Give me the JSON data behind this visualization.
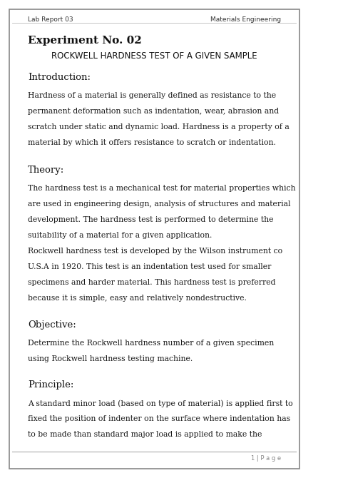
{
  "header_left": "Lab Report 03",
  "header_right": "Materials Engineering",
  "experiment_title": "Experiment No. 02",
  "subtitle": "ROCKWELL HARDNESS TEST OF A GIVEN SAMPLE",
  "section_intro_heading": "Introduction:",
  "section_theory_heading": "Theory:",
  "section_objective_heading": "Objective:",
  "section_principle_heading": "Principle:",
  "intro_lines": [
    "Hardness of a material is generally defined as resistance to the",
    "permanent deformation such as indentation, wear, abrasion and",
    "scratch under static and dynamic load. Hardness is a property of a",
    "material by which it offers resistance to scratch or indentation."
  ],
  "theory_lines1": [
    "The hardness test is a mechanical test for material properties which",
    "are used in engineering design, analysis of structures and material",
    "development. The hardness test is performed to determine the",
    "suitability of a material for a given application."
  ],
  "theory_lines2": [
    "Rockwell hardness test is developed by the Wilson instrument co",
    "U.S.A in 1920. This test is an indentation test used for smaller",
    "specimens and harder material. This hardness test is preferred",
    "because it is simple, easy and relatively nondestructive."
  ],
  "obj_lines": [
    "Determine the Rockwell hardness number of a given specimen",
    "using Rockwell hardness testing machine."
  ],
  "prin_lines": [
    "A standard minor load (based on type of material) is applied first to",
    "fixed the position of indenter on the surface where indentation has",
    "to be made than standard major load is applied to make the"
  ],
  "footer_text": "1 | P a g e",
  "bg_color": "#ffffff",
  "border_color": "#888888",
  "text_color": "#1a1a1a",
  "header_color": "#333333",
  "footer_line_color": "#aaaaaa",
  "header_line_color": "#bbbbbb"
}
